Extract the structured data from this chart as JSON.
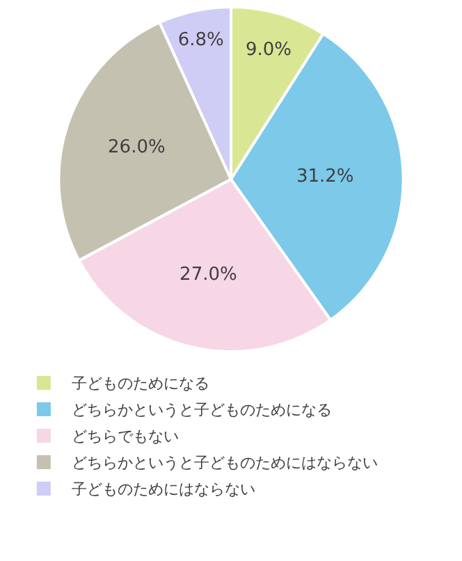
{
  "chart_data": {
    "type": "pie",
    "categories": [
      "子どものためになる",
      "どちらかというと子どものためになる",
      "どちらでもない",
      "どちらかというと子どものためにはならない",
      "子どものためにはならない"
    ],
    "values": [
      9.0,
      31.2,
      27.0,
      26.0,
      6.8
    ],
    "value_labels": [
      "9.0%",
      "31.2%",
      "27.0%",
      "26.0%",
      "6.8%"
    ],
    "colors": [
      "#d9e795",
      "#7cc9ea",
      "#f7d6e6",
      "#c4c1b0",
      "#cfcdf5"
    ],
    "legend": "bottom"
  }
}
